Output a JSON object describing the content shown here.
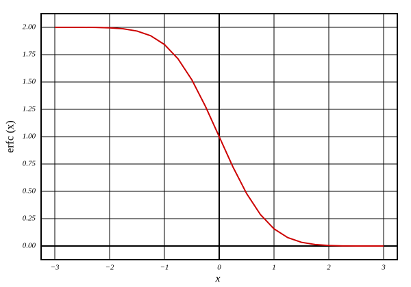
{
  "chart_data": {
    "type": "line",
    "x_label": "x",
    "y_label": "erfc (x)",
    "x": [
      -3,
      -2.75,
      -2.5,
      -2.25,
      -2,
      -1.75,
      -1.5,
      -1.25,
      -1,
      -0.75,
      -0.5,
      -0.25,
      0,
      0.25,
      0.5,
      0.75,
      1,
      1.25,
      1.5,
      1.75,
      2,
      2.25,
      2.5,
      2.75,
      3
    ],
    "values": [
      2.0,
      2.0,
      2.0,
      1.999,
      1.995,
      1.987,
      1.966,
      1.923,
      1.843,
      1.711,
      1.521,
      1.276,
      1.0,
      0.724,
      0.48,
      0.289,
      0.157,
      0.077,
      0.034,
      0.013,
      0.005,
      0.001,
      0.0,
      0.0,
      0.0
    ],
    "color": "#cc0000",
    "xlim": [
      -3.25,
      3.25
    ],
    "ylim": [
      -0.125,
      2.125
    ],
    "xticks": [
      {
        "value": -3,
        "label": "−3"
      },
      {
        "value": -2,
        "label": "−2"
      },
      {
        "value": -1,
        "label": "−1"
      },
      0,
      1,
      2,
      3
    ],
    "yticks": [
      {
        "value": 0,
        "label": "0.00"
      },
      {
        "value": 0.25,
        "label": "0.25"
      },
      {
        "value": 0.5,
        "label": "0.50"
      },
      {
        "value": 0.75,
        "label": "0.75"
      },
      {
        "value": 1,
        "label": "1.00"
      },
      {
        "value": 1.25,
        "label": "1.25"
      },
      {
        "value": 1.5,
        "label": "1.50"
      },
      {
        "value": 1.75,
        "label": "1.75"
      },
      {
        "value": 2,
        "label": "2.00"
      }
    ],
    "grid": true
  }
}
